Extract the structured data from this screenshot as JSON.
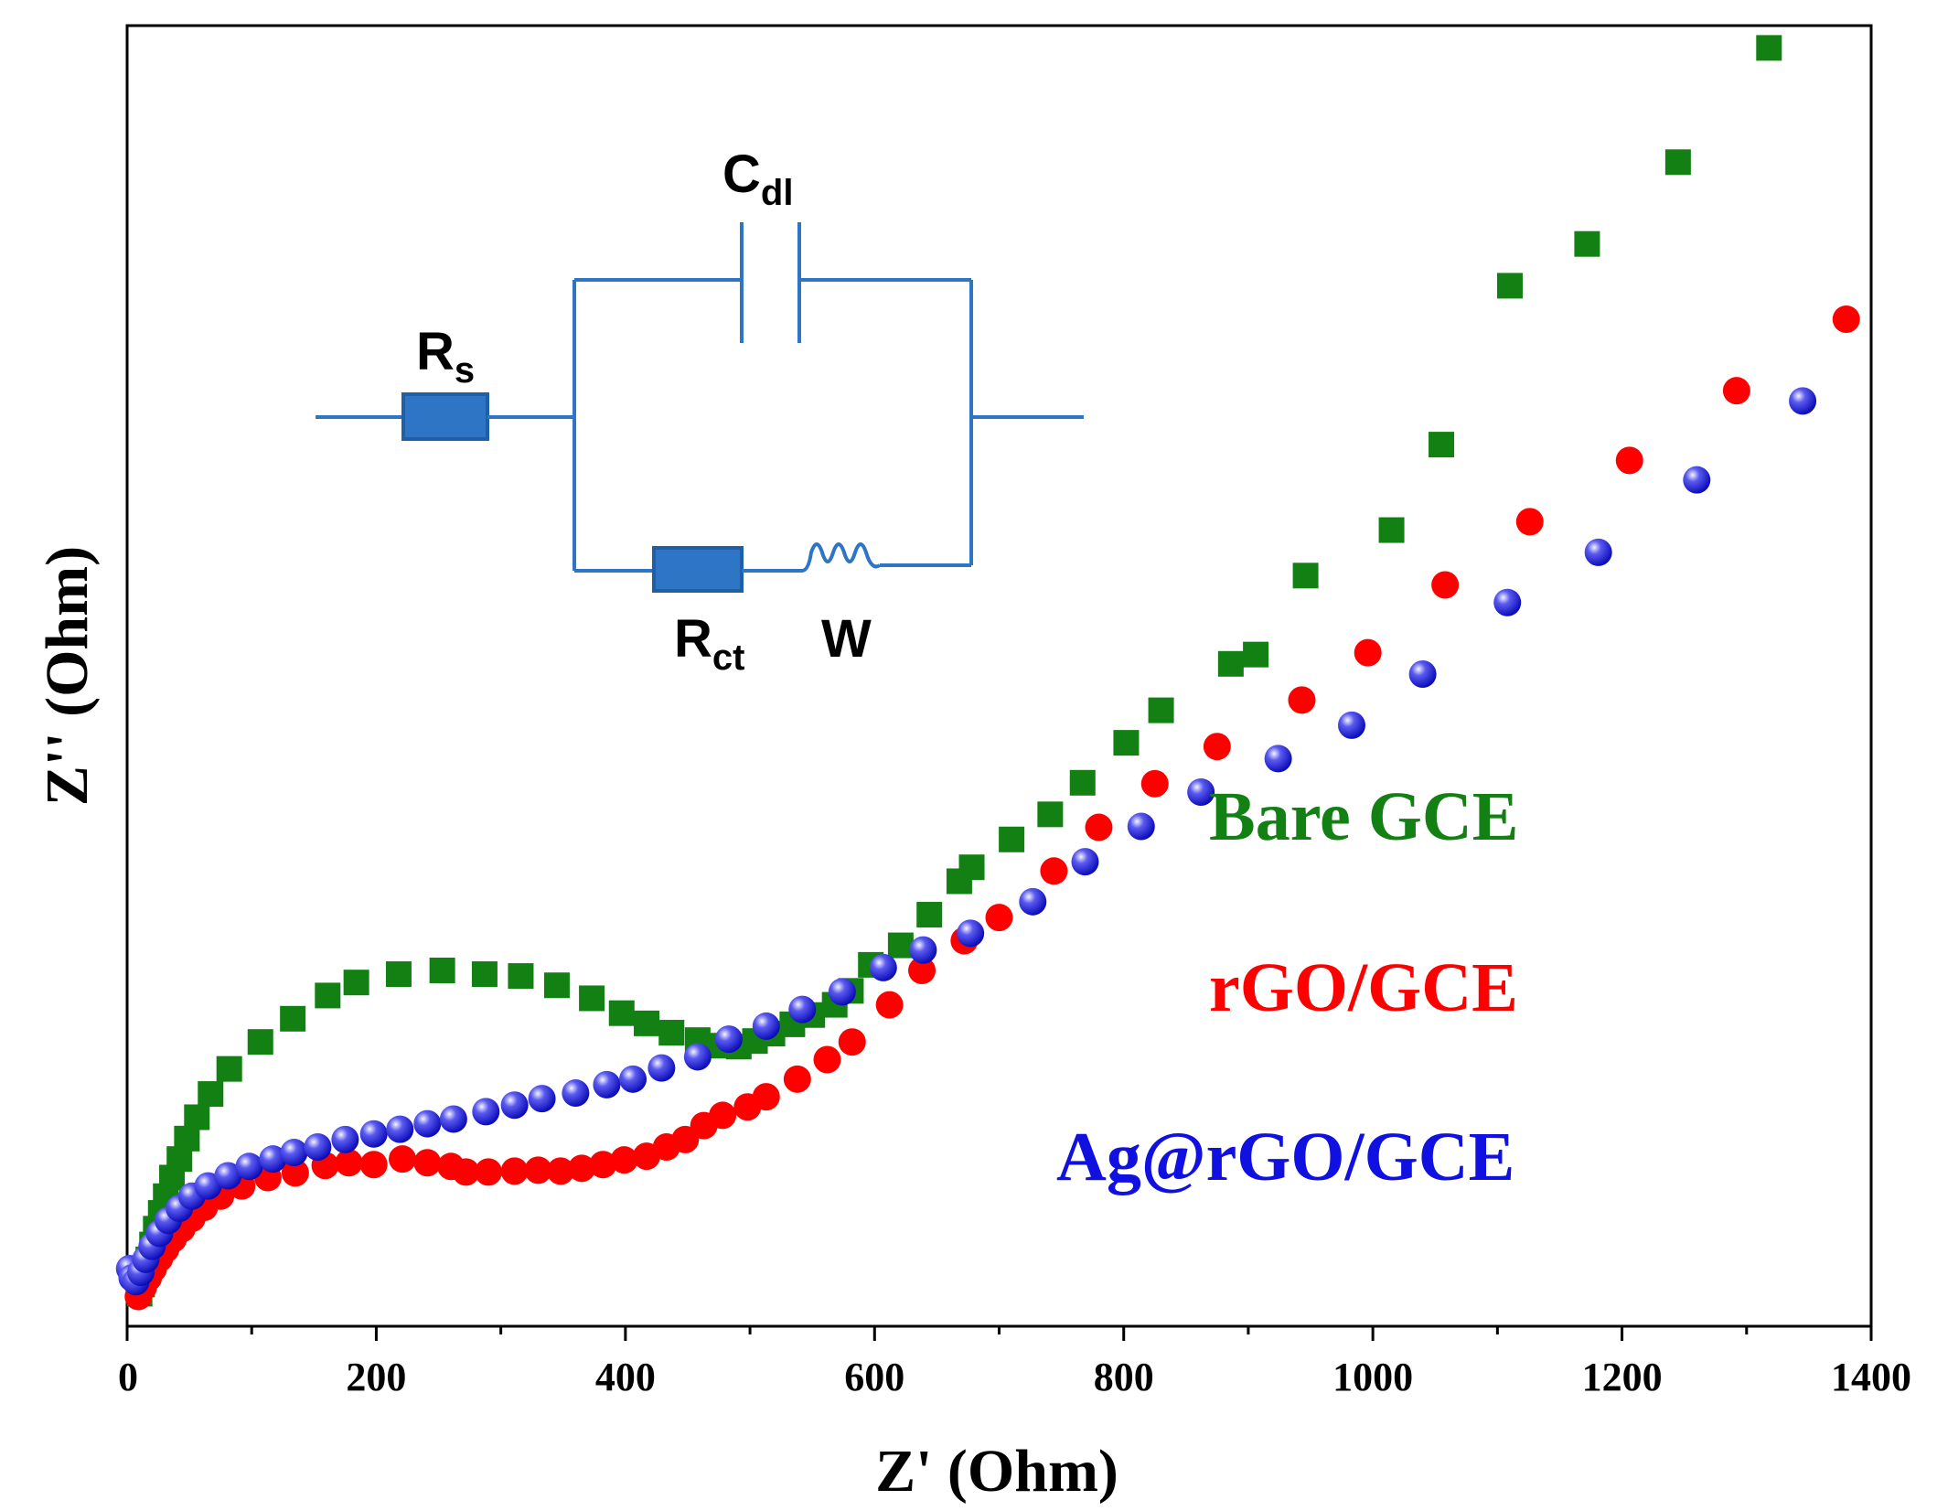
{
  "chart_data": {
    "type": "scatter",
    "title": "",
    "xlabel": "Z' (Ohm)",
    "ylabel": "Z'' (Ohm)",
    "xlim": [
      0,
      1400
    ],
    "ylim": [
      0,
      1400
    ],
    "x_ticks": [
      "0",
      "200",
      "400",
      "600",
      "800",
      "1000",
      "1200",
      "1400"
    ],
    "y_ticks_shown": false,
    "legend_position": "center-right",
    "series": [
      {
        "name": "Bare GCE",
        "color": "#128012",
        "marker": "square",
        "points": [
          [
            10,
            35
          ],
          [
            12,
            45
          ],
          [
            14,
            58
          ],
          [
            17,
            72
          ],
          [
            20,
            88
          ],
          [
            23,
            105
          ],
          [
            27,
            122
          ],
          [
            31,
            140
          ],
          [
            36,
            160
          ],
          [
            42,
            180
          ],
          [
            48,
            202
          ],
          [
            56,
            225
          ],
          [
            67,
            250
          ],
          [
            82,
            277
          ],
          [
            107,
            306
          ],
          [
            133,
            331
          ],
          [
            161,
            356
          ],
          [
            184,
            370
          ],
          [
            218,
            379
          ],
          [
            253,
            383
          ],
          [
            287,
            379
          ],
          [
            316,
            377
          ],
          [
            345,
            367
          ],
          [
            373,
            353
          ],
          [
            397,
            337
          ],
          [
            417,
            326
          ],
          [
            437,
            316
          ],
          [
            458,
            308
          ],
          [
            477,
            302
          ],
          [
            491,
            301
          ],
          [
            504,
            307
          ],
          [
            518,
            315
          ],
          [
            534,
            325
          ],
          [
            550,
            335
          ],
          [
            568,
            346
          ],
          [
            581,
            361
          ],
          [
            597,
            389
          ],
          [
            621,
            410
          ],
          [
            644,
            443
          ],
          [
            668,
            479
          ],
          [
            678,
            494
          ],
          [
            710,
            524
          ],
          [
            741,
            551
          ],
          [
            767,
            585
          ],
          [
            802,
            628
          ],
          [
            830,
            663
          ],
          [
            886,
            713
          ],
          [
            906,
            723
          ],
          [
            946,
            808
          ],
          [
            1015,
            857
          ],
          [
            1055,
            949
          ],
          [
            1110,
            1120
          ],
          [
            1172,
            1165
          ],
          [
            1245,
            1253
          ],
          [
            1318,
            1376
          ]
        ]
      },
      {
        "name": "rGO/GCE",
        "color": "#ff0000",
        "marker": "circle",
        "points": [
          [
            9,
            32
          ],
          [
            13,
            42
          ],
          [
            17,
            52
          ],
          [
            21,
            62
          ],
          [
            26,
            73
          ],
          [
            31,
            83
          ],
          [
            37,
            94
          ],
          [
            44,
            105
          ],
          [
            52,
            116
          ],
          [
            62,
            128
          ],
          [
            75,
            140
          ],
          [
            92,
            151
          ],
          [
            113,
            160
          ],
          [
            135,
            165
          ],
          [
            159,
            173
          ],
          [
            178,
            176
          ],
          [
            198,
            174
          ],
          [
            221,
            180
          ],
          [
            241,
            176
          ],
          [
            260,
            172
          ],
          [
            272,
            166
          ],
          [
            290,
            166
          ],
          [
            311,
            167
          ],
          [
            330,
            168
          ],
          [
            348,
            167
          ],
          [
            365,
            170
          ],
          [
            382,
            174
          ],
          [
            399,
            179
          ],
          [
            417,
            183
          ],
          [
            433,
            193
          ],
          [
            448,
            201
          ],
          [
            463,
            216
          ],
          [
            478,
            227
          ],
          [
            498,
            236
          ],
          [
            513,
            247
          ],
          [
            538,
            266
          ],
          [
            562,
            287
          ],
          [
            582,
            306
          ],
          [
            612,
            346
          ],
          [
            638,
            383
          ],
          [
            672,
            415
          ],
          [
            700,
            440
          ],
          [
            744,
            490
          ],
          [
            780,
            537
          ],
          [
            825,
            584
          ],
          [
            875,
            624
          ],
          [
            943,
            674
          ],
          [
            996,
            725
          ],
          [
            1058,
            798
          ],
          [
            1126,
            866
          ],
          [
            1206,
            932
          ],
          [
            1292,
            1007
          ],
          [
            1380,
            1084
          ]
        ]
      },
      {
        "name": "Ag@rGO/GCE",
        "color": "#1010e0",
        "marker": "sphere",
        "points": [
          [
            2,
            62
          ],
          [
            4,
            52
          ],
          [
            7,
            48
          ],
          [
            11,
            58
          ],
          [
            15,
            72
          ],
          [
            20,
            86
          ],
          [
            26,
            100
          ],
          [
            33,
            114
          ],
          [
            42,
            127
          ],
          [
            52,
            140
          ],
          [
            65,
            151
          ],
          [
            81,
            162
          ],
          [
            98,
            172
          ],
          [
            117,
            180
          ],
          [
            134,
            187
          ],
          [
            153,
            193
          ],
          [
            175,
            201
          ],
          [
            198,
            207
          ],
          [
            219,
            212
          ],
          [
            241,
            218
          ],
          [
            262,
            223
          ],
          [
            288,
            231
          ],
          [
            311,
            238
          ],
          [
            333,
            245
          ],
          [
            360,
            251
          ],
          [
            385,
            260
          ],
          [
            406,
            266
          ],
          [
            429,
            278
          ],
          [
            458,
            290
          ],
          [
            483,
            309
          ],
          [
            513,
            323
          ],
          [
            542,
            341
          ],
          [
            574,
            360
          ],
          [
            607,
            386
          ],
          [
            639,
            405
          ],
          [
            677,
            423
          ],
          [
            727,
            457
          ],
          [
            769,
            500
          ],
          [
            814,
            538
          ],
          [
            862,
            575
          ],
          [
            924,
            611
          ],
          [
            983,
            647
          ],
          [
            1040,
            702
          ],
          [
            1108,
            779
          ],
          [
            1181,
            833
          ],
          [
            1260,
            911
          ],
          [
            1345,
            996
          ]
        ]
      }
    ],
    "legend": [
      {
        "label": "Bare GCE",
        "color": "#128012"
      },
      {
        "label": "rGO/GCE",
        "color": "#ff0000"
      },
      {
        "label": "Ag@rGO/GCE",
        "color": "#1010e0"
      }
    ],
    "inset_circuit": {
      "color": "#2e75c6",
      "labels": {
        "rs_main": "R",
        "rs_sub": "s",
        "cdl_main": "C",
        "cdl_sub": "dl",
        "rct_main": "R",
        "rct_sub": "ct",
        "w": "W"
      }
    }
  }
}
